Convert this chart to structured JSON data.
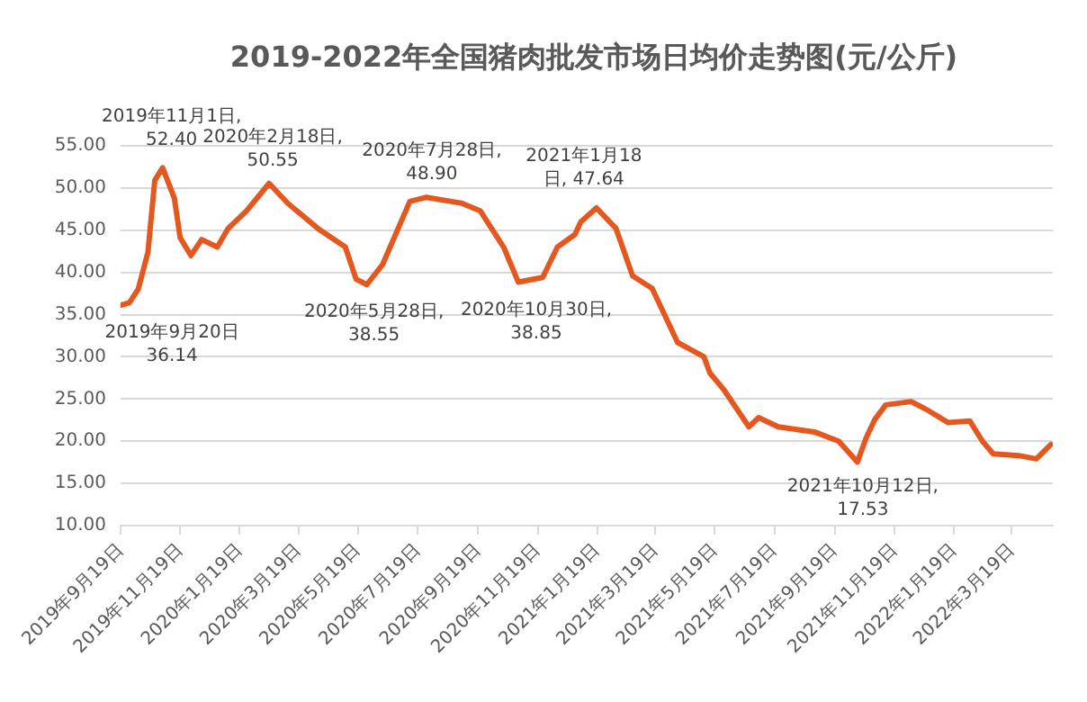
{
  "chart_data": {
    "type": "line",
    "title": "2019-2022年全国猪肉批发市场日均价走势图(元/公斤)",
    "x": [
      "2019-09-20",
      "2019-09-28",
      "2019-10-07",
      "2019-10-17",
      "2019-10-24",
      "2019-11-01",
      "2019-11-13",
      "2019-11-19",
      "2019-11-30",
      "2019-12-11",
      "2019-12-27",
      "2020-01-07",
      "2020-01-26",
      "2020-02-18",
      "2020-03-08",
      "2020-04-08",
      "2020-05-06",
      "2020-05-17",
      "2020-05-28",
      "2020-06-13",
      "2020-07-11",
      "2020-07-28",
      "2020-09-02",
      "2020-09-21",
      "2020-10-15",
      "2020-10-30",
      "2020-11-24",
      "2020-12-09",
      "2020-12-27",
      "2021-01-02",
      "2021-01-18",
      "2021-02-07",
      "2021-02-24",
      "2021-03-16",
      "2021-04-11",
      "2021-05-08",
      "2021-05-14",
      "2021-05-29",
      "2021-06-23",
      "2021-07-03",
      "2021-07-23",
      "2021-08-29",
      "2021-09-23",
      "2021-10-12",
      "2021-10-21",
      "2021-10-30",
      "2021-11-10",
      "2021-12-06",
      "2021-12-24",
      "2022-01-13",
      "2022-02-04",
      "2022-02-17",
      "2022-02-28",
      "2022-03-26",
      "2022-04-13",
      "2022-04-28"
    ],
    "series": [
      {
        "color": "#e4571f",
        "values": [
          36.14,
          36.4,
          38.0,
          42.4,
          50.9,
          52.4,
          48.8,
          44.1,
          42.0,
          43.9,
          43.0,
          45.2,
          47.3,
          50.55,
          48.2,
          45.2,
          43.0,
          39.2,
          38.55,
          40.9,
          48.4,
          48.9,
          48.2,
          47.3,
          43.0,
          38.85,
          39.4,
          43.0,
          44.5,
          46.0,
          47.64,
          45.2,
          39.6,
          38.1,
          31.7,
          30.0,
          28.1,
          26.0,
          21.7,
          22.8,
          21.7,
          21.1,
          20.0,
          17.53,
          20.4,
          22.6,
          24.3,
          24.7,
          23.6,
          22.2,
          22.4,
          20.0,
          18.5,
          18.3,
          17.9,
          19.6
        ]
      }
    ],
    "xlim": [
      "2019-09-19",
      "2022-04-30"
    ],
    "xticks": [
      {
        "value": "2019-09-19",
        "label": "2019年9月19日"
      },
      {
        "value": "2019-11-19",
        "label": "2019年11月19日"
      },
      {
        "value": "2020-01-19",
        "label": "2020年1月19日"
      },
      {
        "value": "2020-03-19",
        "label": "2020年3月19日"
      },
      {
        "value": "2020-05-19",
        "label": "2020年5月19日"
      },
      {
        "value": "2020-07-19",
        "label": "2020年7月19日"
      },
      {
        "value": "2020-09-19",
        "label": "2020年9月19日"
      },
      {
        "value": "2020-11-19",
        "label": "2020年11月19日"
      },
      {
        "value": "2021-01-19",
        "label": "2021年1月19日"
      },
      {
        "value": "2021-03-19",
        "label": "2021年3月19日"
      },
      {
        "value": "2021-05-19",
        "label": "2021年5月19日"
      },
      {
        "value": "2021-07-19",
        "label": "2021年7月19日"
      },
      {
        "value": "2021-09-19",
        "label": "2021年9月19日"
      },
      {
        "value": "2021-11-19",
        "label": "2021年11月19日"
      },
      {
        "value": "2022-01-19",
        "label": "2022年1月19日"
      },
      {
        "value": "2022-03-19",
        "label": "2022年3月19日"
      }
    ],
    "ylim": [
      10,
      55
    ],
    "yticks": [
      {
        "value": 10,
        "label": "10.00"
      },
      {
        "value": 15,
        "label": "15.00"
      },
      {
        "value": 20,
        "label": "20.00"
      },
      {
        "value": 25,
        "label": "25.00"
      },
      {
        "value": 30,
        "label": "30.00"
      },
      {
        "value": 35,
        "label": "35.00"
      },
      {
        "value": 40,
        "label": "40.00"
      },
      {
        "value": 45,
        "label": "45.00"
      },
      {
        "value": 50,
        "label": "50.00"
      },
      {
        "value": 55,
        "label": "55.00"
      }
    ],
    "grid": "y",
    "legend": false,
    "marker": "none",
    "line_style": "solid",
    "annotations": [
      {
        "text": "2019年11月1日,\n52.40",
        "x": "2019-11-01",
        "y": 52.4
      },
      {
        "text": "2020年2月18日,\n50.55",
        "x": "2020-02-18",
        "y": 50.55
      },
      {
        "text": "2020年7月28日,\n48.90",
        "x": "2020-07-28",
        "y": 48.9
      },
      {
        "text": "2019年9月20日\n36.14",
        "x": "2019-09-20",
        "y": 36.14
      },
      {
        "text": "2020年5月28日,\n38.55",
        "x": "2020-05-28",
        "y": 38.55
      },
      {
        "text": "2020年10月30日,\n38.85",
        "x": "2020-10-30",
        "y": 38.85
      },
      {
        "text": "2021年1月18\n日, 47.64",
        "x": "2021-01-18",
        "y": 47.64
      },
      {
        "text": "2021年10月12日,\n17.53",
        "x": "2021-10-12",
        "y": 17.53
      }
    ]
  }
}
